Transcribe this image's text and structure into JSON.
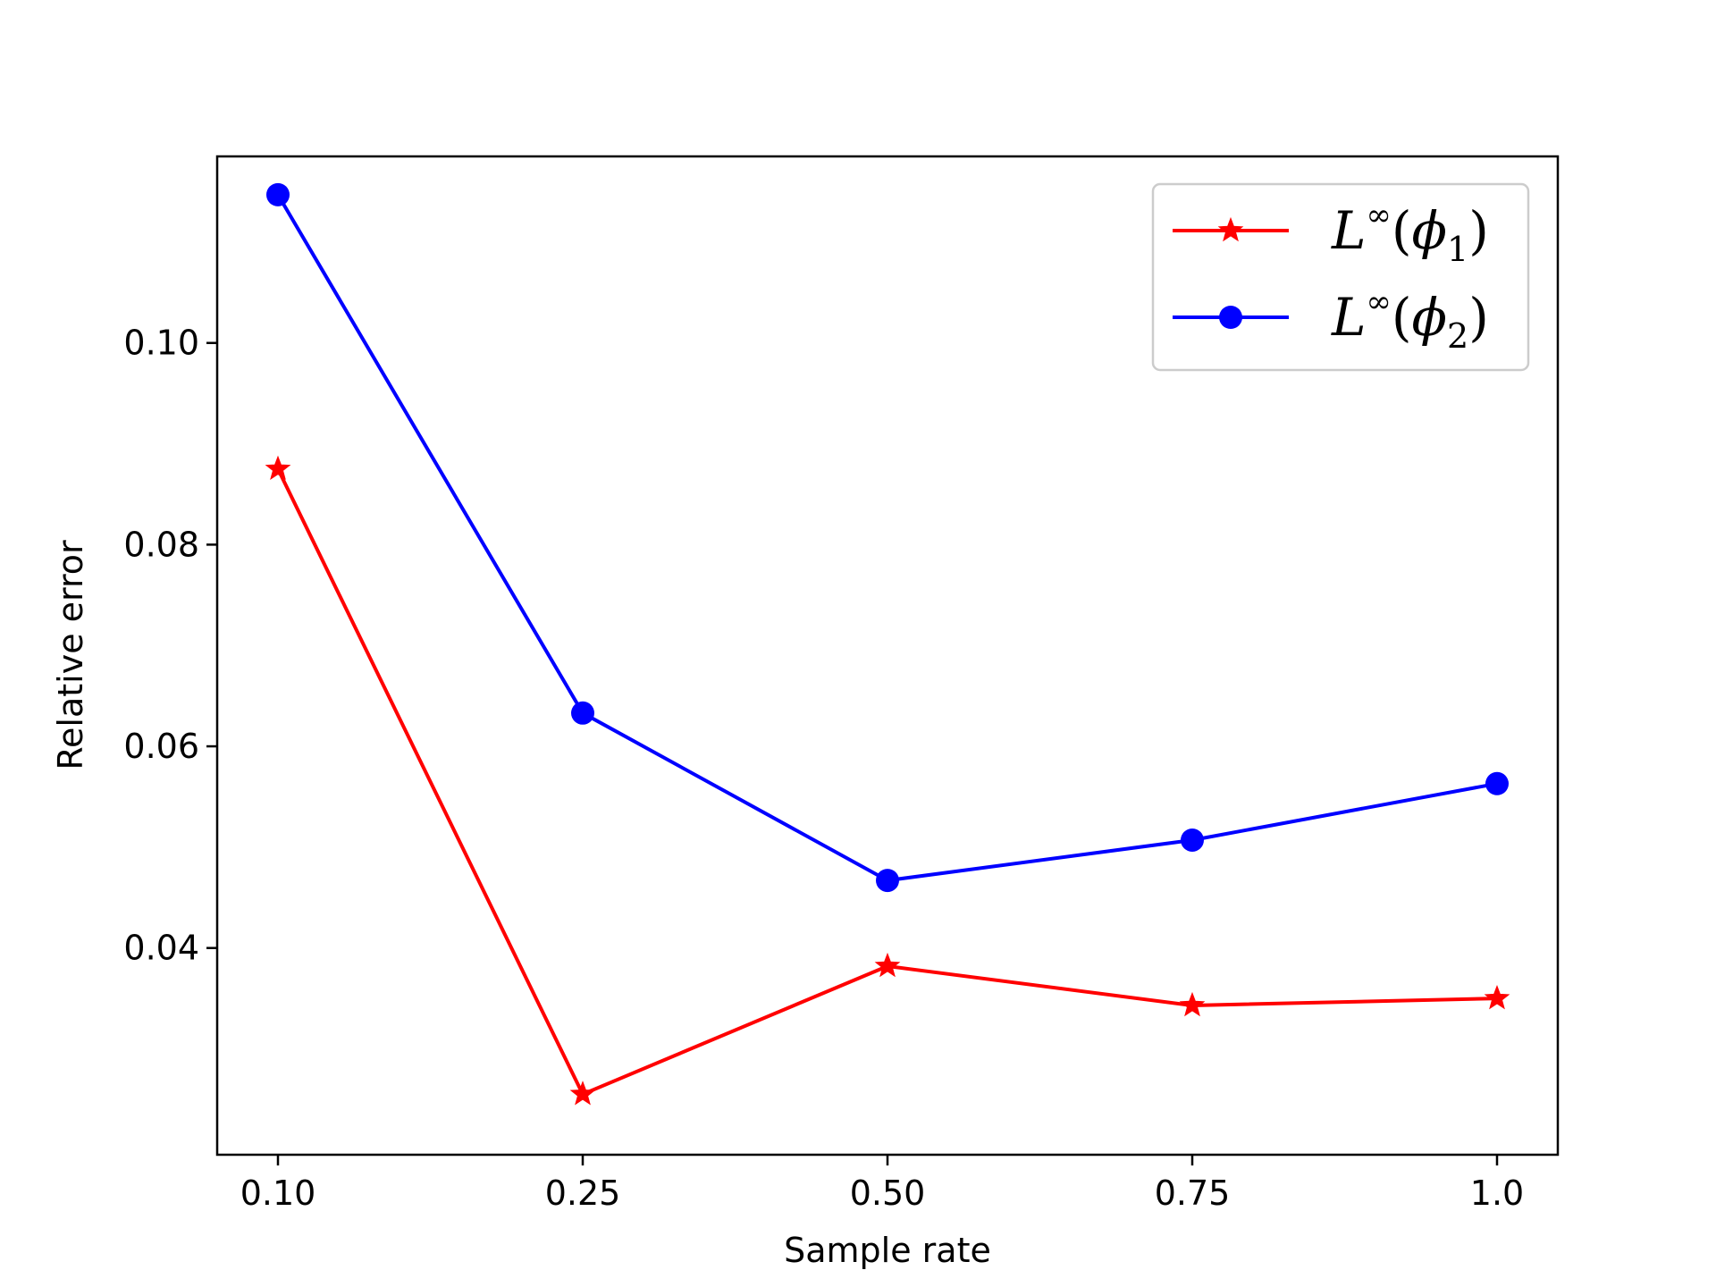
{
  "chart_data": {
    "type": "line",
    "categories": [
      "0.10",
      "0.25",
      "0.50",
      "0.75",
      "1.0"
    ],
    "xlabel": "Sample rate",
    "ylabel": "Relative error",
    "ylim": [
      0.0195,
      0.1185
    ],
    "yticks": [
      "0.04",
      "0.06",
      "0.08",
      "0.10"
    ],
    "grid": false,
    "legend_position": "top-right",
    "series": [
      {
        "name": "L∞(ϕ1)",
        "color": "#ff0000",
        "marker": "star",
        "values": [
          0.0875,
          0.0255,
          0.0382,
          0.0343,
          0.035
        ]
      },
      {
        "name": "L∞(ϕ2)",
        "color": "#0000ff",
        "marker": "circle",
        "values": [
          0.1147,
          0.0633,
          0.0467,
          0.0507,
          0.0563
        ]
      }
    ]
  }
}
